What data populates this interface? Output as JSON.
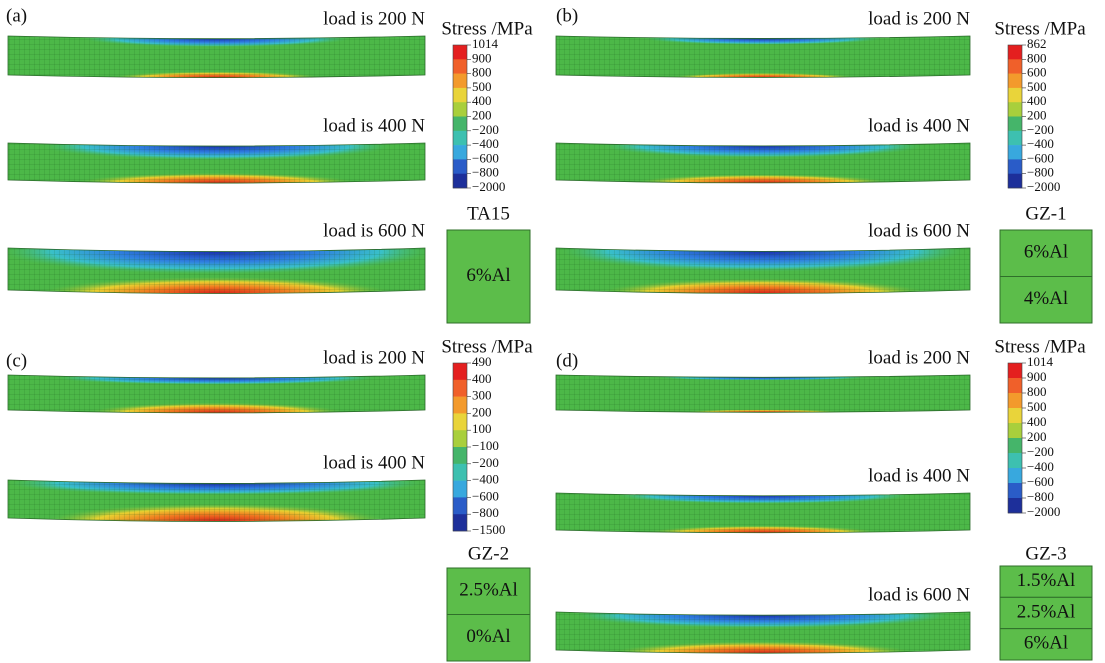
{
  "panels": [
    {
      "label": "(a)",
      "loads": [
        "load is 200 N",
        "load is 400 N",
        "load is 600 N"
      ],
      "legend": {
        "title": "Stress /MPa",
        "ticks": [
          "1014",
          "900",
          "800",
          "500",
          "400",
          "200",
          "−200",
          "−400",
          "−600",
          "−800",
          "−2000"
        ]
      },
      "material": {
        "name": "TA15",
        "layers": [
          "6%Al"
        ]
      }
    },
    {
      "label": "(b)",
      "loads": [
        "load is 200 N",
        "load is 400 N",
        "load is 600 N"
      ],
      "legend": {
        "title": "Stress /MPa",
        "ticks": [
          "862",
          "800",
          "600",
          "500",
          "400",
          "200",
          "−200",
          "−400",
          "−600",
          "−800",
          "−2000"
        ]
      },
      "material": {
        "name": "GZ-1",
        "layers": [
          "6%Al",
          "4%Al"
        ]
      }
    },
    {
      "label": "(c)",
      "loads": [
        "load is 200 N",
        "load is 400 N"
      ],
      "legend": {
        "title": "Stress /MPa",
        "ticks": [
          "490",
          "400",
          "300",
          "200",
          "100",
          "−100",
          "−200",
          "−400",
          "−600",
          "−800",
          "−1500"
        ]
      },
      "material": {
        "name": "GZ-2",
        "layers": [
          "2.5%Al",
          "0%Al"
        ]
      }
    },
    {
      "label": "(d)",
      "loads": [
        "load is 200 N",
        "load is 400 N",
        "load is 600 N"
      ],
      "legend": {
        "title": "Stress /MPa",
        "ticks": [
          "1014",
          "900",
          "800",
          "500",
          "400",
          "200",
          "−200",
          "−400",
          "−600",
          "−800",
          "−2000"
        ]
      },
      "material": {
        "name": "GZ-3",
        "layers": [
          "1.5%Al",
          "2.5%Al",
          "6%Al"
        ]
      }
    }
  ]
}
